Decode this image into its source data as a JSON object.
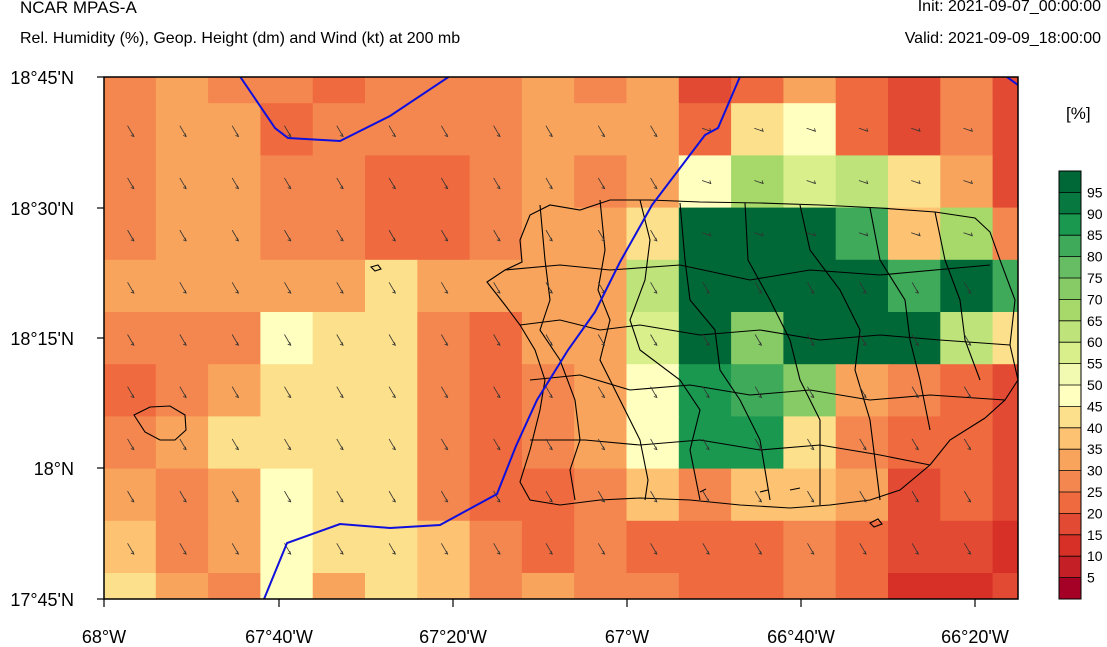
{
  "header": {
    "title": "NCAR MPAS-A",
    "subtitle": "Rel. Humidity (%), Geop. Height (dm) and Wind (kt) at 200 mb",
    "init": "Init: 2021-09-07_00:00:00",
    "valid": "Valid: 2021-09-09_18:00:00"
  },
  "colorbar": {
    "units": "[%]",
    "labels": [
      "5",
      "10",
      "15",
      "20",
      "25",
      "30",
      "35",
      "40",
      "45",
      "50",
      "55",
      "60",
      "65",
      "70",
      "75",
      "80",
      "85",
      "90",
      "95"
    ],
    "colors": [
      "#a50026",
      "#c41e27",
      "#d73027",
      "#e34a33",
      "#ef6a3e",
      "#f4874f",
      "#f8a45c",
      "#fdc272",
      "#fde08b",
      "#ffffbf",
      "#f2f9b0",
      "#d9ef8b",
      "#bfe37b",
      "#a6d96a",
      "#86cb66",
      "#66bd63",
      "#3faa59",
      "#1a9850",
      "#077940",
      "#006837"
    ]
  },
  "axes": {
    "x_labels": [
      "68°W",
      "67°40'W",
      "67°20'W",
      "67°W",
      "66°40'W",
      "66°20'W"
    ],
    "y_labels": [
      "18°45'N",
      "18°30'N",
      "18°15'N",
      "18°N",
      "17°45'N"
    ]
  },
  "chart_data": {
    "type": "heatmap",
    "variable": "Relative humidity (%)",
    "lon_range": [
      -68.0,
      -66.17
    ],
    "lat_range": [
      17.75,
      18.75
    ],
    "grid_rh": [
      [
        25,
        30,
        25,
        25,
        20,
        25,
        25,
        25,
        30,
        25,
        30,
        15,
        20,
        30,
        20,
        15,
        25,
        15,
        10
      ],
      [
        25,
        30,
        30,
        20,
        25,
        25,
        25,
        25,
        30,
        30,
        30,
        20,
        40,
        45,
        20,
        15,
        25,
        15,
        10
      ],
      [
        25,
        30,
        30,
        25,
        25,
        20,
        20,
        25,
        30,
        25,
        30,
        45,
        65,
        55,
        60,
        40,
        30,
        15,
        10
      ],
      [
        25,
        30,
        30,
        25,
        25,
        20,
        20,
        25,
        30,
        30,
        40,
        95,
        95,
        95,
        80,
        35,
        65,
        25,
        15
      ],
      [
        30,
        30,
        30,
        30,
        30,
        40,
        30,
        30,
        30,
        30,
        60,
        95,
        95,
        95,
        95,
        80,
        95,
        80,
        25
      ],
      [
        25,
        25,
        25,
        45,
        40,
        40,
        25,
        20,
        30,
        30,
        55,
        95,
        70,
        95,
        95,
        95,
        60,
        40,
        20
      ],
      [
        20,
        25,
        30,
        40,
        40,
        40,
        25,
        20,
        25,
        30,
        45,
        85,
        80,
        70,
        30,
        25,
        20,
        15,
        20
      ],
      [
        25,
        30,
        40,
        40,
        40,
        40,
        25,
        20,
        25,
        30,
        45,
        85,
        85,
        40,
        25,
        20,
        20,
        15,
        15
      ],
      [
        30,
        25,
        30,
        45,
        40,
        40,
        25,
        20,
        20,
        25,
        35,
        25,
        35,
        35,
        30,
        15,
        20,
        15,
        15
      ],
      [
        35,
        25,
        30,
        45,
        40,
        40,
        35,
        25,
        20,
        25,
        20,
        20,
        20,
        25,
        20,
        15,
        15,
        10,
        15
      ],
      [
        40,
        30,
        25,
        45,
        30,
        40,
        35,
        25,
        30,
        25,
        25,
        20,
        20,
        25,
        20,
        10,
        10,
        15,
        15
      ],
      [
        35,
        40,
        25,
        45,
        30,
        50,
        35,
        25,
        25,
        25,
        25,
        15,
        20,
        25,
        20,
        15,
        20,
        20,
        15
      ]
    ],
    "contour_label": "Geopotential height (dm)",
    "wind_label": "Wind (kt)"
  }
}
